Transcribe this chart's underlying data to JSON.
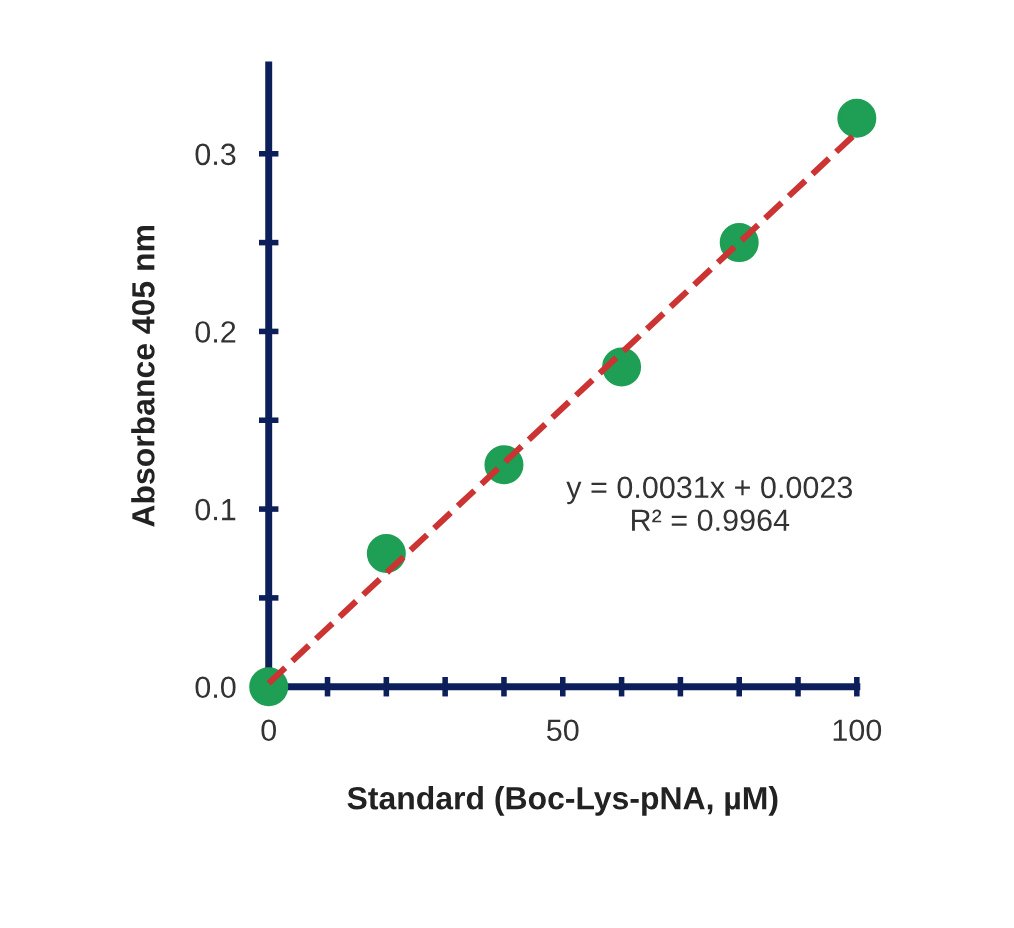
{
  "chart_data": {
    "type": "scatter",
    "xlabel": "Standard (Boc-Lys-pNA, µM)",
    "ylabel": "Absorbance 405 nm",
    "xlim": [
      0,
      100
    ],
    "ylim": [
      0,
      0.35
    ],
    "xticks": [
      0,
      {
        "value": 10,
        "label": null
      },
      {
        "value": 20,
        "label": null
      },
      {
        "value": 30,
        "label": null
      },
      {
        "value": 40,
        "label": null
      },
      50,
      {
        "value": 60,
        "label": null
      },
      {
        "value": 70,
        "label": null
      },
      {
        "value": 80,
        "label": null
      },
      {
        "value": 90,
        "label": null
      },
      100
    ],
    "yticks": [
      {
        "value": 0,
        "label": "0.0"
      },
      {
        "value": 0.05,
        "label": null
      },
      0.1,
      {
        "value": 0.15,
        "label": null
      },
      0.2,
      {
        "value": 0.25,
        "label": null
      },
      0.3
    ],
    "grid": false,
    "legend": false,
    "series": [
      {
        "color": "#1f9e55",
        "x": [
          0,
          20,
          40,
          60,
          80,
          100
        ],
        "values": [
          0,
          0.075,
          0.125,
          0.18,
          0.25,
          0.32
        ],
        "marker": "circle"
      },
      {
        "type": "line",
        "color": "#cc3333",
        "x": [
          0,
          100
        ],
        "values": [
          0.002,
          0.312
        ],
        "line_style": "dashed",
        "marker": "none"
      }
    ],
    "annotations": [
      "y = 0.0031x + 0.0023\nR² = 0.9964"
    ]
  }
}
